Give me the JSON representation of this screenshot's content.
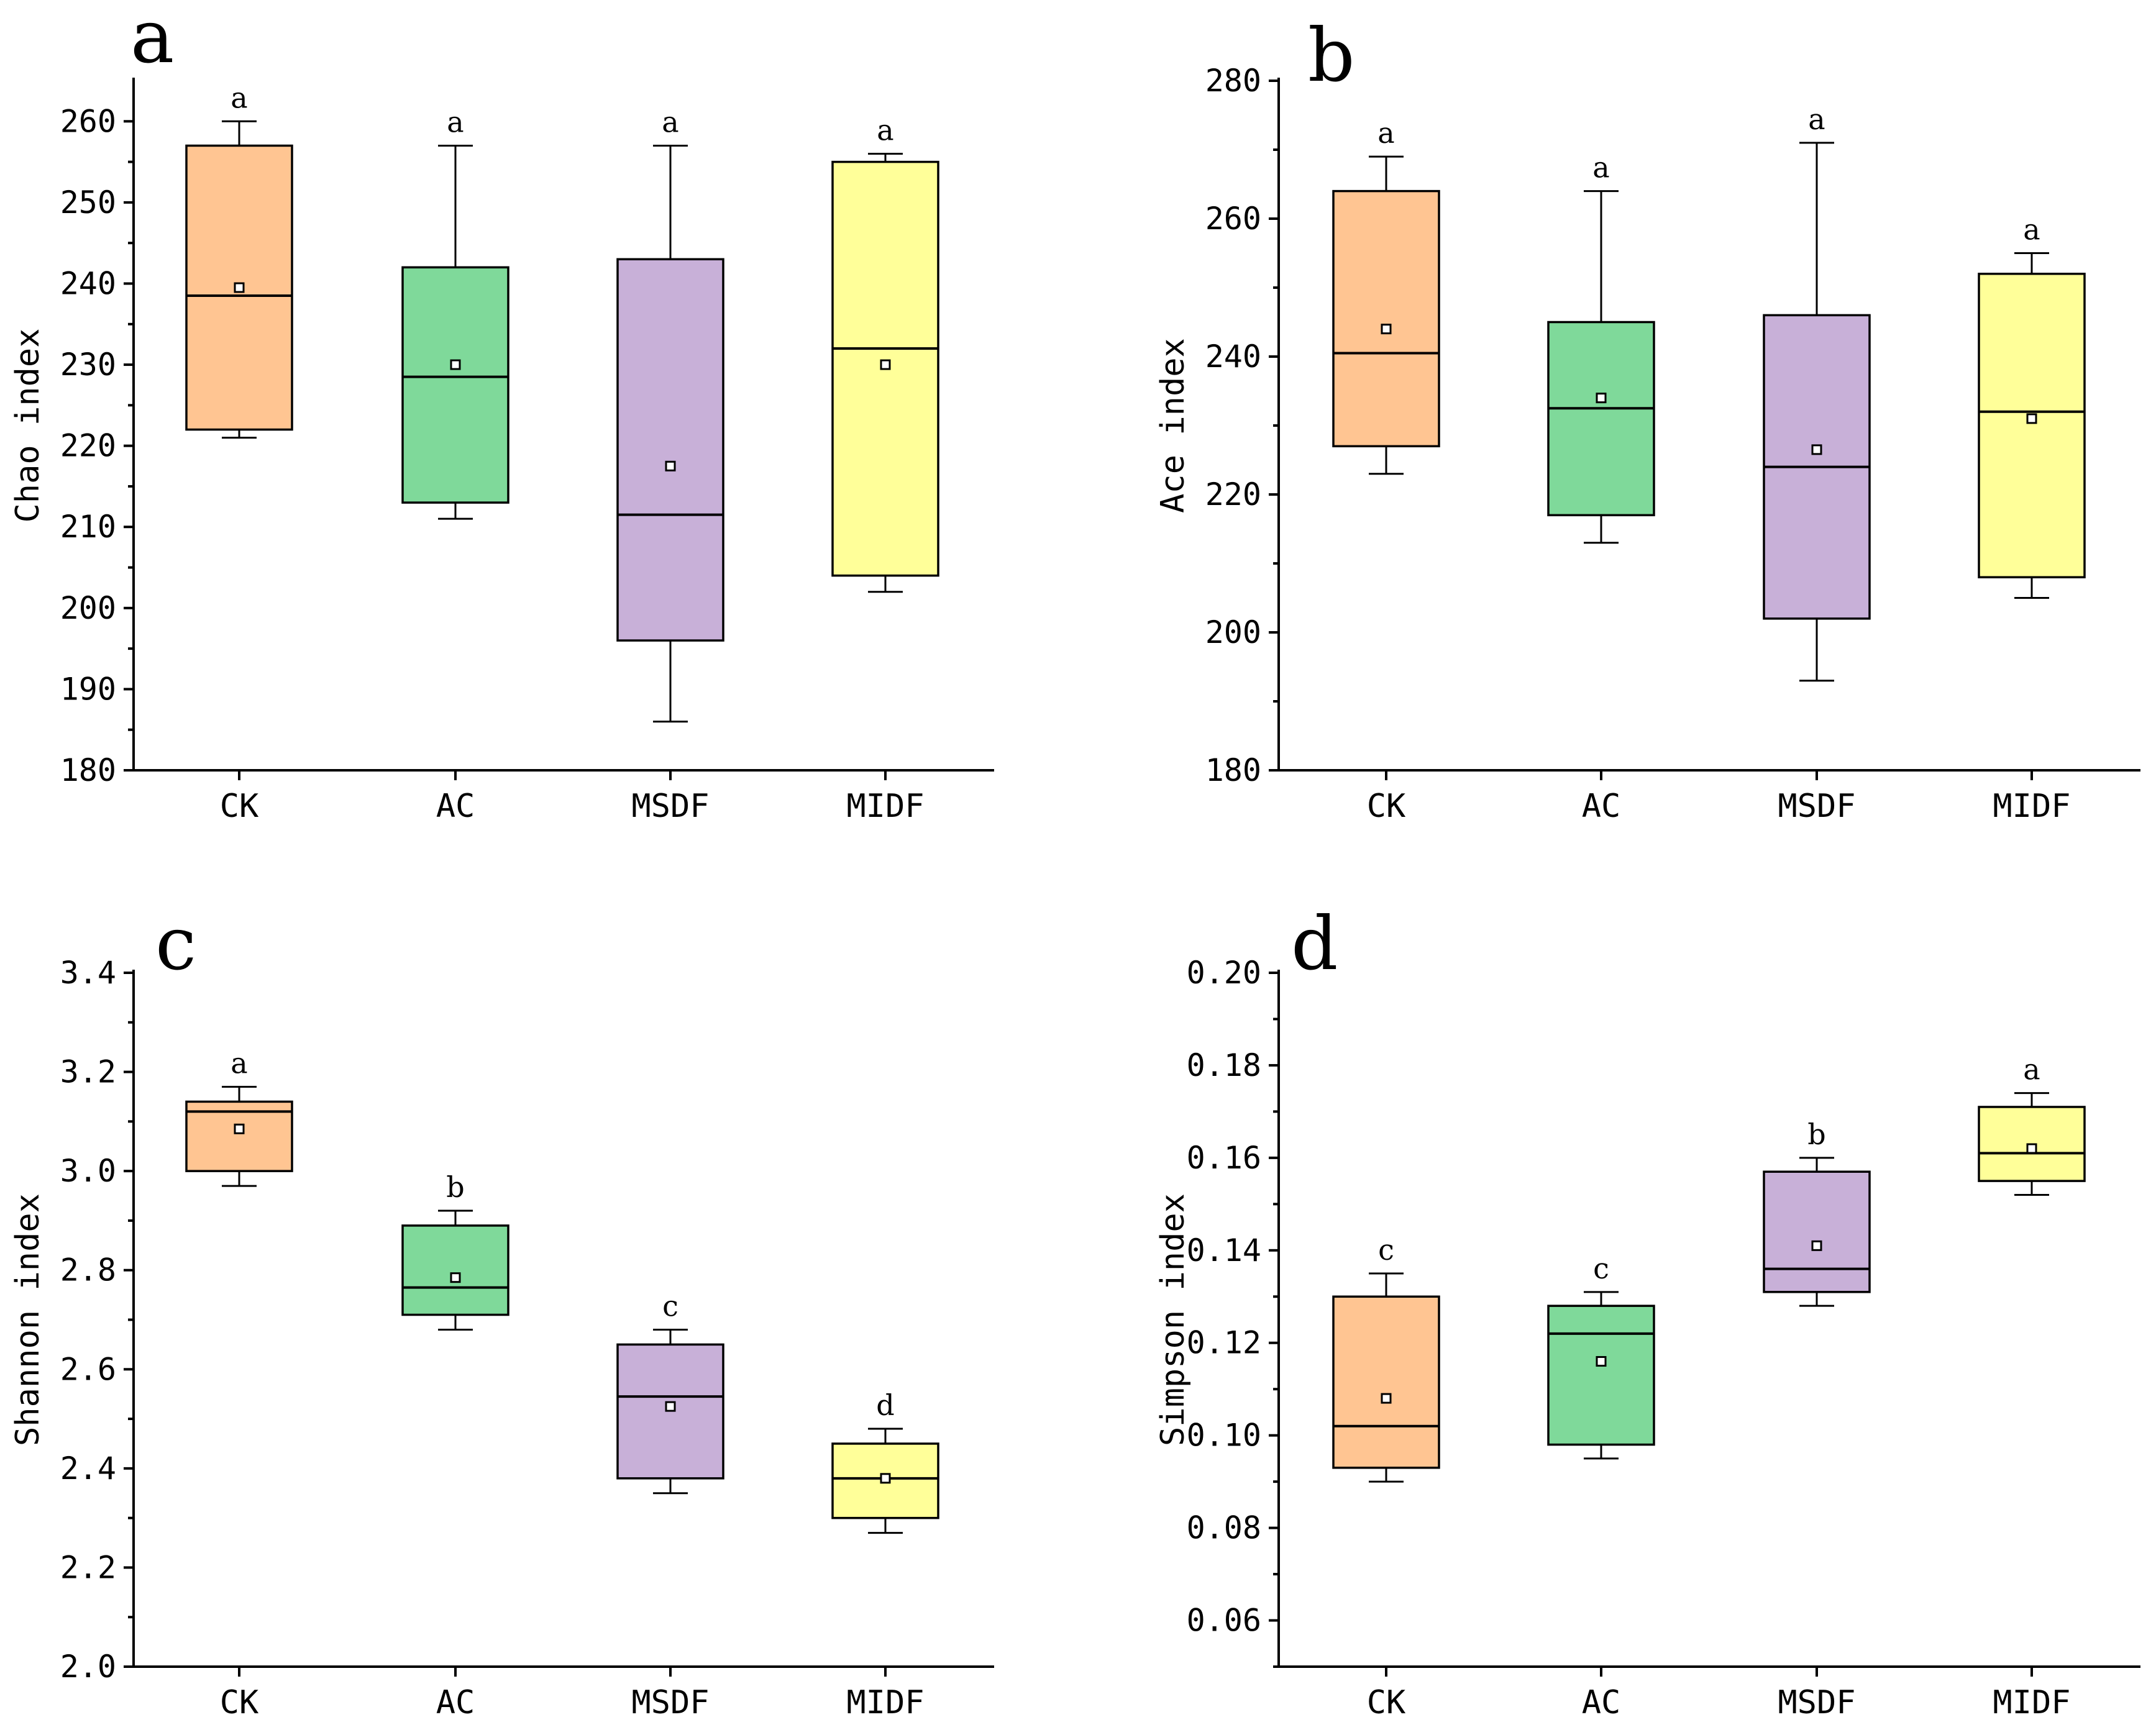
{
  "colors": {
    "CK": "#FFC592",
    "AC": "#7FD99A",
    "MSDF": "#C8B0D8",
    "MIDF": "#FFFF99"
  },
  "chart_data": [
    {
      "panel": "a",
      "type": "box",
      "ylabel": "Chao index",
      "ylim": [
        180,
        265
      ],
      "yticks": [
        180,
        190,
        200,
        210,
        220,
        230,
        240,
        250,
        260
      ],
      "tick_decimals": 0,
      "categories": [
        "CK",
        "AC",
        "MSDF",
        "MIDF"
      ],
      "boxes": [
        {
          "min": 221,
          "q1": 222,
          "median": 238.5,
          "q3": 257,
          "max": 260,
          "mean": 239.5,
          "sig": "a"
        },
        {
          "min": 211,
          "q1": 213,
          "median": 228.5,
          "q3": 242,
          "max": 257,
          "mean": 230,
          "sig": "a"
        },
        {
          "min": 186,
          "q1": 196,
          "median": 211.5,
          "q3": 243,
          "max": 257,
          "mean": 217.5,
          "sig": "a"
        },
        {
          "min": 202,
          "q1": 204,
          "median": 232,
          "q3": 255,
          "max": 256,
          "mean": 230,
          "sig": "a"
        }
      ]
    },
    {
      "panel": "b",
      "type": "box",
      "ylabel": "Ace index",
      "ylim": [
        180,
        280
      ],
      "yticks": [
        180,
        200,
        220,
        240,
        260,
        280
      ],
      "tick_decimals": 0,
      "categories": [
        "CK",
        "AC",
        "MSDF",
        "MIDF"
      ],
      "boxes": [
        {
          "min": 223,
          "q1": 227,
          "median": 240.5,
          "q3": 264,
          "max": 269,
          "mean": 244,
          "sig": "a"
        },
        {
          "min": 213,
          "q1": 217,
          "median": 232.5,
          "q3": 245,
          "max": 264,
          "mean": 234,
          "sig": "a"
        },
        {
          "min": 193,
          "q1": 202,
          "median": 224,
          "q3": 246,
          "max": 271,
          "mean": 226.5,
          "sig": "a"
        },
        {
          "min": 205,
          "q1": 208,
          "median": 232,
          "q3": 252,
          "max": 255,
          "mean": 231,
          "sig": "a"
        }
      ]
    },
    {
      "panel": "c",
      "type": "box",
      "ylabel": "Shannon index",
      "ylim": [
        2.0,
        3.4
      ],
      "yticks": [
        2.0,
        2.2,
        2.4,
        2.6,
        2.8,
        3.0,
        3.2,
        3.4
      ],
      "tick_decimals": 1,
      "categories": [
        "CK",
        "AC",
        "MSDF",
        "MIDF"
      ],
      "boxes": [
        {
          "min": 2.97,
          "q1": 3.0,
          "median": 3.12,
          "q3": 3.14,
          "max": 3.17,
          "mean": 3.085,
          "sig": "a"
        },
        {
          "min": 2.68,
          "q1": 2.71,
          "median": 2.765,
          "q3": 2.89,
          "max": 2.92,
          "mean": 2.785,
          "sig": "b"
        },
        {
          "min": 2.35,
          "q1": 2.38,
          "median": 2.545,
          "q3": 2.65,
          "max": 2.68,
          "mean": 2.525,
          "sig": "c"
        },
        {
          "min": 2.27,
          "q1": 2.3,
          "median": 2.38,
          "q3": 2.45,
          "max": 2.48,
          "mean": 2.38,
          "sig": "d"
        }
      ]
    },
    {
      "panel": "d",
      "type": "box",
      "ylabel": "Simpson index",
      "ylim": [
        0.05,
        0.2
      ],
      "yticks": [
        0.06,
        0.08,
        0.1,
        0.12,
        0.14,
        0.16,
        0.18,
        0.2
      ],
      "tick_decimals": 2,
      "categories": [
        "CK",
        "AC",
        "MSDF",
        "MIDF"
      ],
      "boxes": [
        {
          "min": 0.09,
          "q1": 0.093,
          "median": 0.102,
          "q3": 0.13,
          "max": 0.135,
          "mean": 0.108,
          "sig": "c"
        },
        {
          "min": 0.095,
          "q1": 0.098,
          "median": 0.122,
          "q3": 0.128,
          "max": 0.131,
          "mean": 0.116,
          "sig": "c"
        },
        {
          "min": 0.128,
          "q1": 0.131,
          "median": 0.136,
          "q3": 0.157,
          "max": 0.16,
          "mean": 0.141,
          "sig": "b"
        },
        {
          "min": 0.152,
          "q1": 0.155,
          "median": 0.161,
          "q3": 0.171,
          "max": 0.174,
          "mean": 0.162,
          "sig": "a"
        }
      ]
    }
  ]
}
